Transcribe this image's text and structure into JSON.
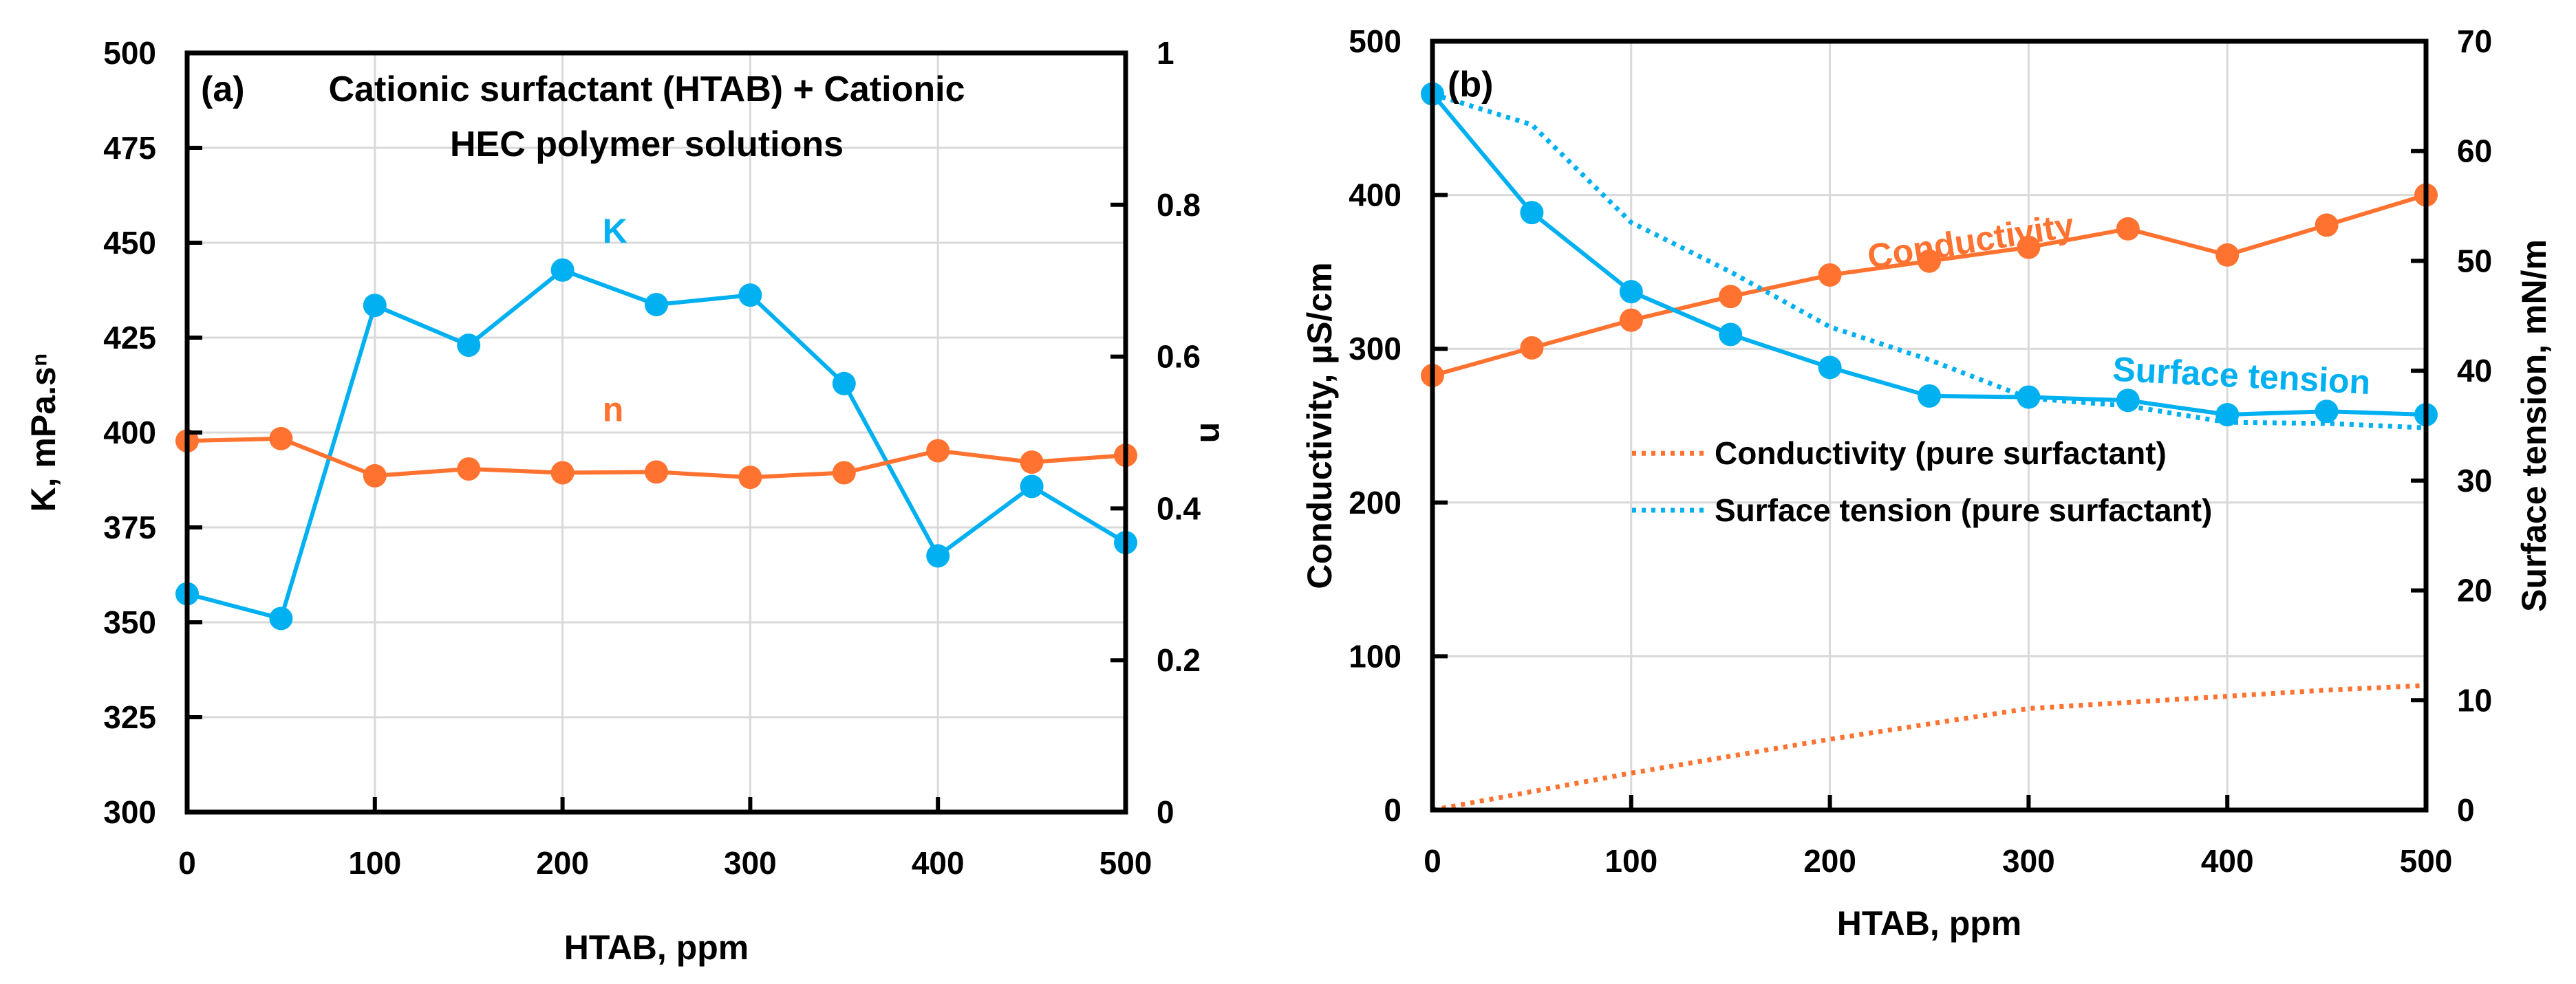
{
  "chart_data": [
    {
      "type": "line",
      "panel_label": "(a)",
      "title_lines": [
        "Cationic surfactant (HTAB) + Cationic",
        "HEC polymer solutions"
      ],
      "xlabel": "HTAB, ppm",
      "ylabel": "K, mPa.sⁿ",
      "y2label": "n",
      "xlim": [
        0,
        500
      ],
      "ylim": [
        300,
        500
      ],
      "y2lim": [
        0,
        1
      ],
      "xticks": [
        0,
        100,
        200,
        300,
        400,
        500
      ],
      "yticks": [
        300,
        325,
        350,
        375,
        400,
        425,
        450,
        475,
        500
      ],
      "y2ticks": [
        0,
        0.2,
        0.4,
        0.6,
        0.8,
        1
      ],
      "y2ticklabels": [
        "0",
        "0.2",
        "0.4",
        "0.6",
        "0.8",
        "1"
      ],
      "grid": true,
      "x": [
        0,
        50,
        100,
        150,
        200,
        250,
        300,
        350,
        400,
        450,
        500
      ],
      "series": [
        {
          "name": "K",
          "axis": "left",
          "color": "#00b0f0",
          "style": "solid-markers",
          "label_text": "K",
          "values": [
            357.5,
            351,
            433.5,
            423,
            442.8,
            433.7,
            436.2,
            412.9,
            367.5,
            385.8,
            371
          ]
        },
        {
          "name": "n",
          "axis": "right",
          "color": "#ff7230",
          "style": "solid-markers",
          "label_text": "n",
          "values": [
            0.489,
            0.492,
            0.443,
            0.452,
            0.447,
            0.448,
            0.441,
            0.447,
            0.476,
            0.461,
            0.47
          ]
        }
      ]
    },
    {
      "type": "line",
      "panel_label": "(b)",
      "xlabel": "HTAB, ppm",
      "ylabel": "Conductivity, µS/cm",
      "y2label": "Surface tension, mN/m",
      "xlim": [
        0,
        500
      ],
      "ylim": [
        0,
        500
      ],
      "y2lim": [
        0,
        70
      ],
      "xticks": [
        0,
        100,
        200,
        300,
        400,
        500
      ],
      "yticks": [
        0,
        100,
        200,
        300,
        400,
        500
      ],
      "y2ticks": [
        0,
        10,
        20,
        30,
        40,
        50,
        60,
        70
      ],
      "grid": true,
      "x": [
        0,
        50,
        100,
        150,
        200,
        250,
        300,
        350,
        400,
        450,
        500
      ],
      "series": [
        {
          "name": "Conductivity",
          "axis": "left",
          "color": "#ff7230",
          "style": "solid-markers",
          "label_text": "Conductivity",
          "values": [
            282.6,
            300.6,
            318.6,
            334,
            348,
            357,
            366,
            378,
            361,
            380.4,
            400
          ]
        },
        {
          "name": "Surface tension",
          "axis": "right",
          "color": "#00b0f0",
          "style": "solid-markers",
          "label_text": "Surface tension",
          "values": [
            65.2,
            54.4,
            47.2,
            43.3,
            40.3,
            37.7,
            37.6,
            37.3,
            36.0,
            36.3,
            36.0
          ]
        },
        {
          "name": "Conductivity (pure surfactant)",
          "axis": "left",
          "color": "#ff7230",
          "style": "dotted",
          "values": [
            0,
            12,
            24,
            35,
            46,
            56,
            66,
            70,
            74,
            78,
            81
          ]
        },
        {
          "name": "Surface tension (pure surfactant)",
          "axis": "right",
          "color": "#00b0f0",
          "style": "dotted",
          "values": [
            65.2,
            62.4,
            53.5,
            49.0,
            44.0,
            41.0,
            37.5,
            36.8,
            35.3,
            35.2,
            34.8
          ]
        }
      ],
      "legend": {
        "placement": "center-left",
        "entries": [
          "Conductivity (pure surfactant)",
          "Surface tension (pure surfactant)"
        ]
      }
    }
  ]
}
